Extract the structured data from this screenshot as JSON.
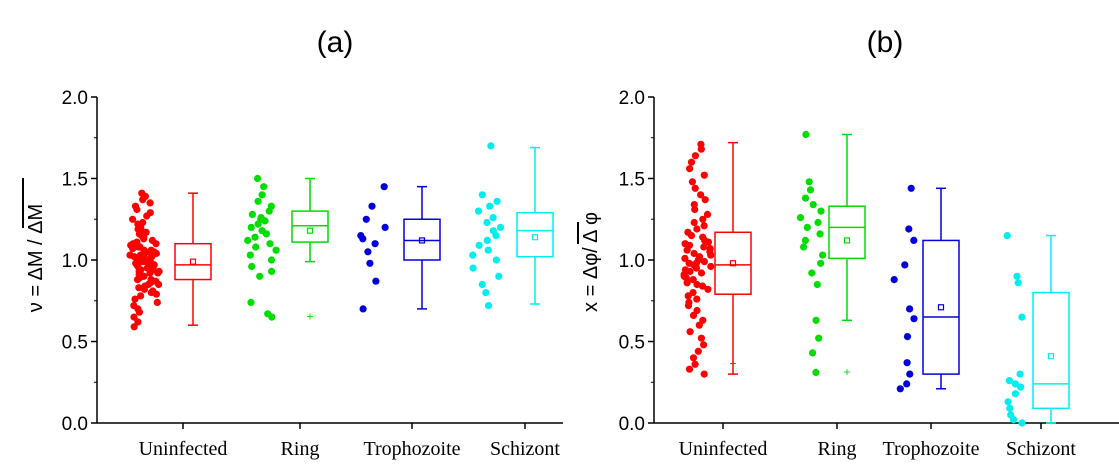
{
  "chart_data": [
    {
      "type": "box",
      "panel_label": "(a)",
      "ylabel": "ν = ΔM / ΔM",
      "ylim": [
        0.0,
        2.0
      ],
      "yticks": [
        "0.0",
        "0.5",
        "1.0",
        "1.5",
        "2.0"
      ],
      "categories": [
        "Uninfected",
        "Ring",
        "Trophozoite",
        "Schizont"
      ],
      "colors": [
        "#ff0000",
        "#00dd00",
        "#0000dd",
        "#00eeee"
      ],
      "boxes": [
        {
          "category": "Uninfected",
          "whisker_low": 0.6,
          "q1": 0.88,
          "median": 0.97,
          "q3": 1.1,
          "whisker_high": 1.41,
          "mean": 0.99,
          "outliers": []
        },
        {
          "category": "Ring",
          "whisker_low": 0.99,
          "q1": 1.11,
          "median": 1.21,
          "q3": 1.3,
          "whisker_high": 1.5,
          "mean": 1.18,
          "outliers": [
            0.66
          ]
        },
        {
          "category": "Trophozoite",
          "whisker_low": 0.7,
          "q1": 1.0,
          "median": 1.12,
          "q3": 1.25,
          "whisker_high": 1.45,
          "mean": 1.12,
          "outliers": []
        },
        {
          "category": "Schizont",
          "whisker_low": 0.73,
          "q1": 1.02,
          "median": 1.18,
          "q3": 1.29,
          "whisker_high": 1.69,
          "mean": 1.14,
          "outliers": []
        }
      ],
      "points": [
        {
          "category": "Uninfected",
          "values": [
            0.59,
            0.62,
            0.65,
            0.68,
            0.7,
            0.72,
            0.74,
            0.76,
            0.78,
            0.79,
            0.8,
            0.81,
            0.82,
            0.83,
            0.84,
            0.85,
            0.85,
            0.86,
            0.87,
            0.87,
            0.88,
            0.88,
            0.89,
            0.9,
            0.9,
            0.91,
            0.91,
            0.92,
            0.92,
            0.93,
            0.93,
            0.94,
            0.94,
            0.95,
            0.95,
            0.96,
            0.96,
            0.97,
            0.97,
            0.97,
            0.98,
            0.98,
            0.99,
            0.99,
            1.0,
            1.0,
            1.0,
            1.01,
            1.01,
            1.02,
            1.02,
            1.03,
            1.03,
            1.04,
            1.04,
            1.05,
            1.05,
            1.06,
            1.06,
            1.07,
            1.08,
            1.08,
            1.09,
            1.1,
            1.1,
            1.11,
            1.12,
            1.13,
            1.14,
            1.15,
            1.16,
            1.17,
            1.18,
            1.19,
            1.2,
            1.22,
            1.23,
            1.25,
            1.27,
            1.29,
            1.31,
            1.33,
            1.35,
            1.37,
            1.39,
            1.41
          ]
        },
        {
          "category": "Ring",
          "values": [
            0.65,
            0.67,
            0.74,
            0.9,
            0.93,
            0.96,
            1.0,
            1.03,
            1.06,
            1.08,
            1.1,
            1.12,
            1.14,
            1.16,
            1.18,
            1.2,
            1.22,
            1.24,
            1.25,
            1.26,
            1.28,
            1.3,
            1.33,
            1.36,
            1.4,
            1.45,
            1.5
          ]
        },
        {
          "category": "Trophozoite",
          "values": [
            0.7,
            0.87,
            0.98,
            1.05,
            1.1,
            1.13,
            1.15,
            1.2,
            1.25,
            1.33,
            1.45
          ]
        },
        {
          "category": "Schizont",
          "values": [
            0.72,
            0.8,
            0.85,
            0.9,
            0.95,
            1.0,
            1.03,
            1.06,
            1.09,
            1.12,
            1.15,
            1.18,
            1.2,
            1.23,
            1.26,
            1.3,
            1.33,
            1.36,
            1.4,
            1.7
          ]
        }
      ]
    },
    {
      "type": "box",
      "panel_label": "(b)",
      "ylabel": "x = Δφ/ Δ φ",
      "ylim": [
        0.0,
        2.0
      ],
      "yticks": [
        "0.0",
        "0.5",
        "1.0",
        "1.5",
        "2.0"
      ],
      "categories": [
        "Uninfected",
        "Ring",
        "Trophozoite",
        "Schizont"
      ],
      "colors": [
        "#ff0000",
        "#00dd00",
        "#0000dd",
        "#00eeee"
      ],
      "boxes": [
        {
          "category": "Uninfected",
          "whisker_low": 0.3,
          "q1": 0.79,
          "median": 0.97,
          "q3": 1.17,
          "whisker_high": 1.72,
          "mean": 0.98,
          "outliers": [
            0.37
          ]
        },
        {
          "category": "Ring",
          "whisker_low": 0.63,
          "q1": 1.01,
          "median": 1.2,
          "q3": 1.33,
          "whisker_high": 1.77,
          "mean": 1.12,
          "outliers": [
            0.32
          ]
        },
        {
          "category": "Trophozoite",
          "whisker_low": 0.21,
          "q1": 0.3,
          "median": 0.65,
          "q3": 1.12,
          "whisker_high": 1.44,
          "mean": 0.71,
          "outliers": []
        },
        {
          "category": "Schizont",
          "whisker_low": 0.0,
          "q1": 0.09,
          "median": 0.24,
          "q3": 0.8,
          "whisker_high": 1.15,
          "mean": 0.41,
          "outliers": []
        }
      ],
      "points": [
        {
          "category": "Uninfected",
          "values": [
            0.3,
            0.33,
            0.36,
            0.4,
            0.44,
            0.48,
            0.52,
            0.56,
            0.6,
            0.63,
            0.66,
            0.69,
            0.72,
            0.74,
            0.76,
            0.78,
            0.8,
            0.82,
            0.84,
            0.85,
            0.86,
            0.88,
            0.89,
            0.9,
            0.91,
            0.92,
            0.93,
            0.94,
            0.95,
            0.96,
            0.97,
            0.98,
            0.98,
            0.99,
            1.0,
            1.01,
            1.02,
            1.03,
            1.04,
            1.05,
            1.06,
            1.07,
            1.08,
            1.09,
            1.1,
            1.11,
            1.12,
            1.14,
            1.15,
            1.17,
            1.19,
            1.21,
            1.23,
            1.25,
            1.28,
            1.31,
            1.34,
            1.37,
            1.4,
            1.44,
            1.48,
            1.52,
            1.56,
            1.6,
            1.64,
            1.68,
            1.71
          ]
        },
        {
          "category": "Ring",
          "values": [
            0.31,
            0.43,
            0.52,
            0.63,
            0.85,
            0.92,
            0.98,
            1.03,
            1.08,
            1.12,
            1.16,
            1.2,
            1.23,
            1.26,
            1.3,
            1.34,
            1.38,
            1.43,
            1.48,
            1.77
          ]
        },
        {
          "category": "Trophozoite",
          "values": [
            0.21,
            0.24,
            0.3,
            0.37,
            0.53,
            0.64,
            0.7,
            0.88,
            0.97,
            1.12,
            1.19,
            1.44
          ]
        },
        {
          "category": "Schizont",
          "values": [
            0.0,
            0.02,
            0.05,
            0.09,
            0.13,
            0.18,
            0.22,
            0.24,
            0.26,
            0.3,
            0.65,
            0.86,
            0.9,
            1.15
          ]
        }
      ]
    }
  ]
}
